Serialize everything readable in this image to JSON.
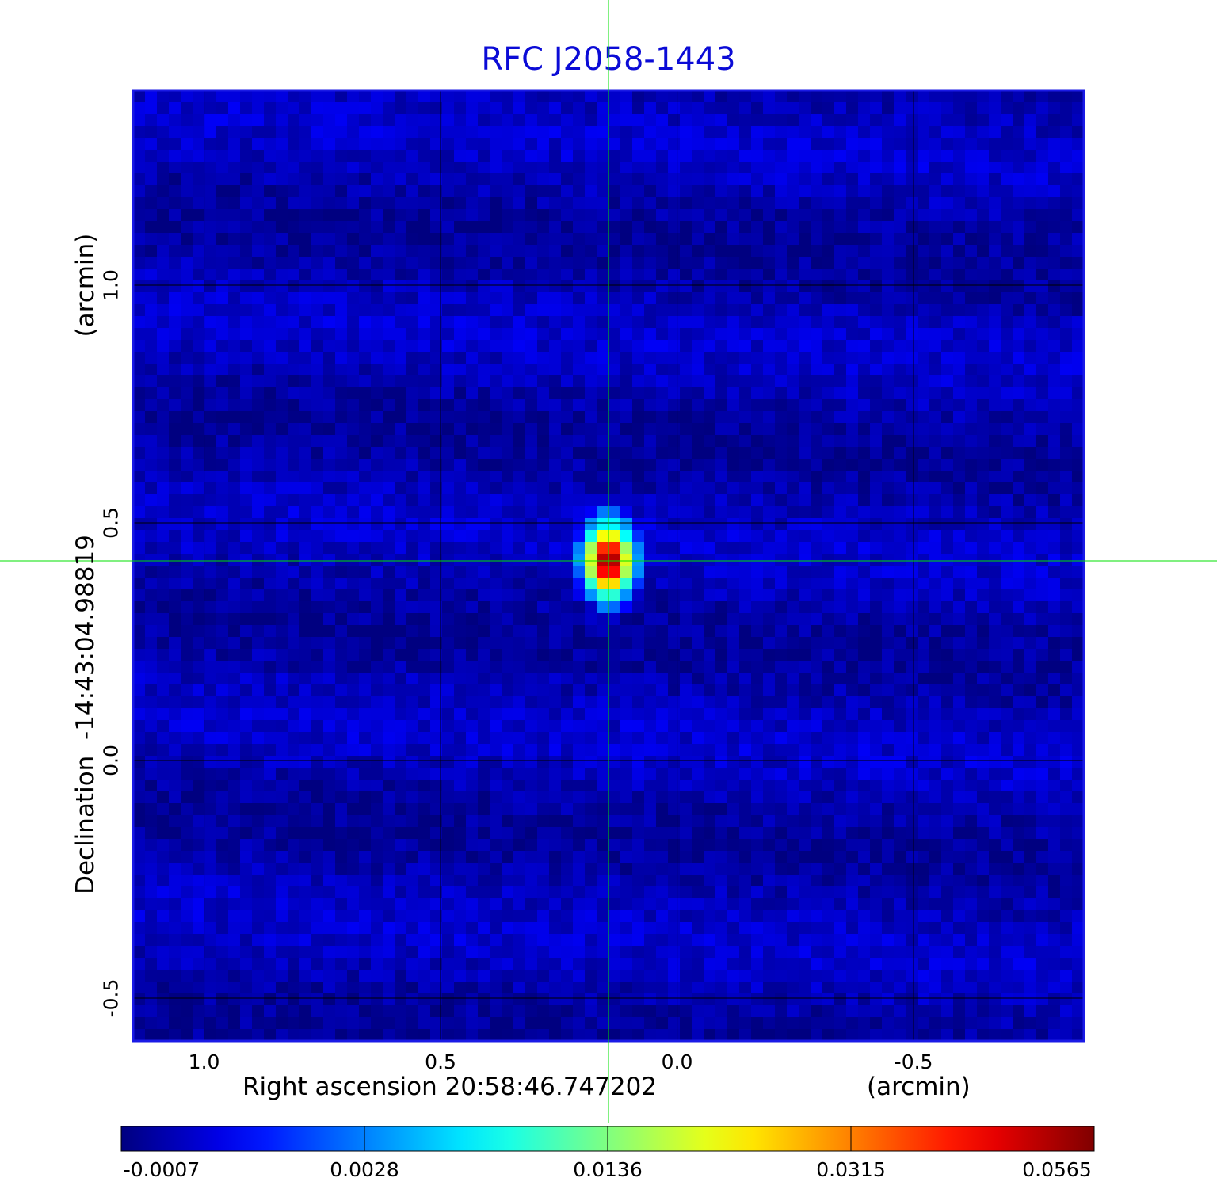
{
  "chart_data": {
    "type": "heatmap",
    "title": "RFC J2058-1443",
    "xlabel": "Right ascension  20:58:46.747202",
    "xunit": "(arcmin)",
    "ylabel": "Declination  -14:43:04.98819",
    "yunit": "(arcmin)",
    "x_axis": {
      "range": [
        1.15,
        -0.86
      ],
      "reversed": true,
      "ticks": [
        1.0,
        0.5,
        0.0,
        -0.5
      ],
      "tick_labels": [
        "1.0",
        "0.5",
        "0.0",
        "-0.5"
      ]
    },
    "y_axis": {
      "range": [
        -0.59,
        1.41
      ],
      "ticks": [
        1.0,
        0.5,
        0.0,
        -0.5
      ],
      "tick_labels": [
        "1.0",
        "0.5",
        "0.0",
        "-0.5"
      ]
    },
    "grid": true,
    "crosshair": {
      "x": 0.145,
      "y": 0.42,
      "color": "#00e000"
    },
    "source_peak": {
      "x": 0.145,
      "y": 0.42,
      "value": 0.0565
    },
    "background_level": 0.0,
    "colormap": "jet",
    "colorbar": {
      "range": [
        -0.0007,
        0.0565
      ],
      "ticks": [
        -0.0007,
        0.0028,
        0.0136,
        0.0315,
        0.0565
      ],
      "tick_labels": [
        "-0.0007",
        "0.0028",
        "0.0136",
        "0.0315",
        "0.0565"
      ]
    }
  }
}
